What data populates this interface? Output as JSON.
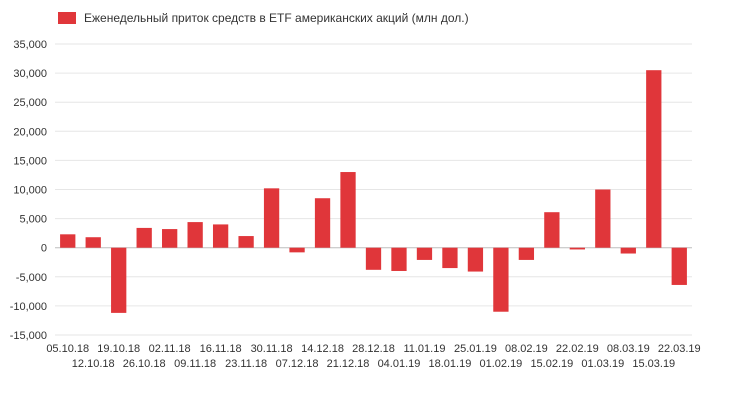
{
  "chart_data": {
    "type": "bar",
    "title": "",
    "xlabel": "",
    "ylabel": "",
    "ylim": [
      -15000,
      35000
    ],
    "yticks": [
      35000,
      30000,
      25000,
      20000,
      15000,
      10000,
      5000,
      0,
      -5000,
      -10000,
      -15000
    ],
    "ytick_labels": [
      "35,000",
      "30,000",
      "25,000",
      "20,000",
      "15,000",
      "10,000",
      "5,000",
      "0",
      "-5,000",
      "-10,000",
      "-15,000"
    ],
    "grid": true,
    "legend_position": "top-left",
    "categories": [
      "05.10.18",
      "12.10.18",
      "19.10.18",
      "26.10.18",
      "02.11.18",
      "09.11.18",
      "16.11.18",
      "23.11.18",
      "30.11.18",
      "07.12.18",
      "14.12.18",
      "21.12.18",
      "28.12.18",
      "04.01.19",
      "11.01.19",
      "18.01.19",
      "25.01.19",
      "01.02.19",
      "08.02.19",
      "15.02.19",
      "22.02.19",
      "01.03.19",
      "08.03.19",
      "15.03.19",
      "22.03.19"
    ],
    "series": [
      {
        "name": "Еженедельный приток средств в ETF американских акций (млн дол.)",
        "color": "#e0363a",
        "values": [
          2300,
          1800,
          -11200,
          3400,
          3200,
          4400,
          4000,
          2000,
          10200,
          -800,
          8500,
          13000,
          -3800,
          -4000,
          -2100,
          -3500,
          -4100,
          -11000,
          -2100,
          6100,
          -300,
          10000,
          -1000,
          30500,
          -6400
        ]
      }
    ]
  }
}
